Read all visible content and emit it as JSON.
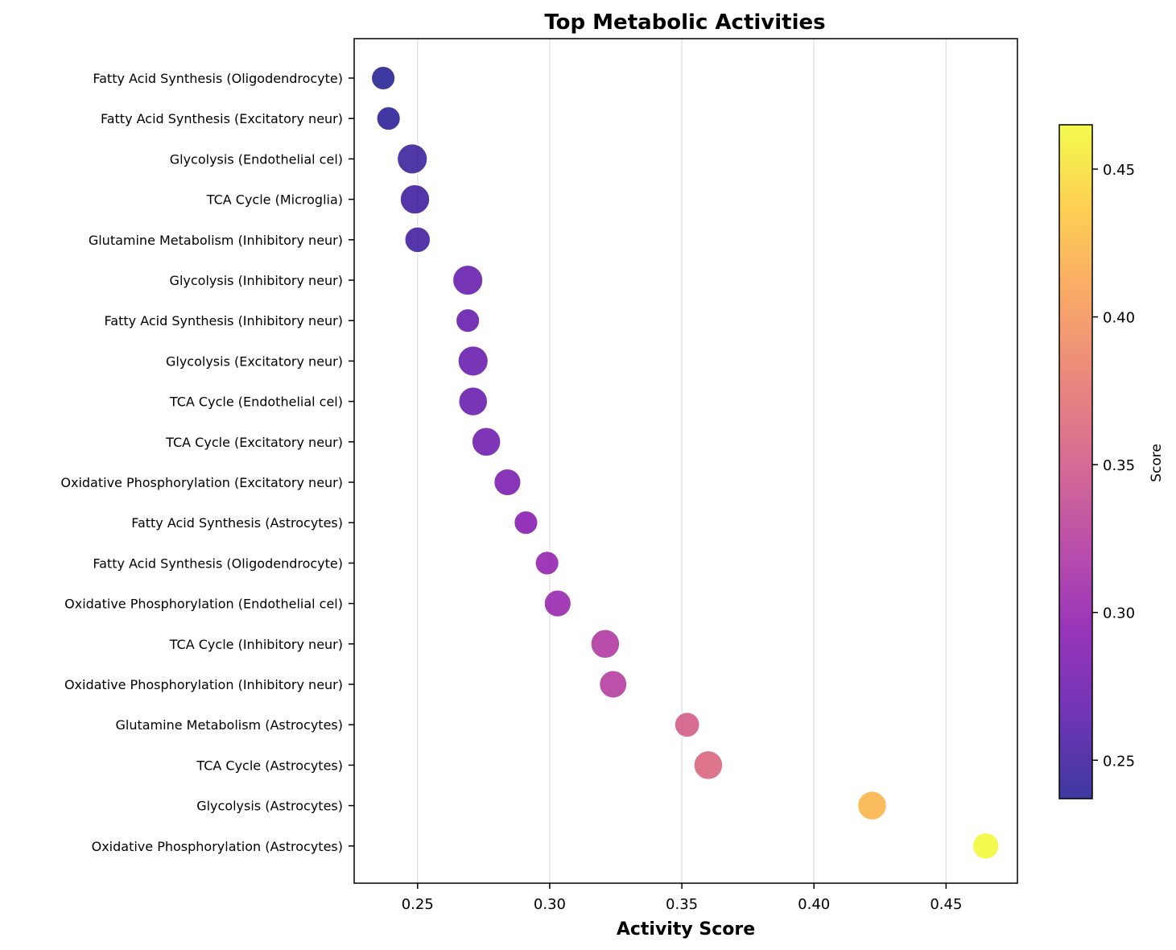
{
  "chart_data": {
    "type": "scatter",
    "title": "Top Metabolic Activities",
    "xlabel": "Activity Score",
    "ylabel": "",
    "xlim": [
      0.226,
      0.477
    ],
    "xticks": [
      0.25,
      0.3,
      0.35,
      0.4,
      0.45
    ],
    "xtick_labels": [
      "0.25",
      "0.30",
      "0.35",
      "0.40",
      "0.45"
    ],
    "grid": "vertical",
    "colormap": "plasma",
    "colorbar": {
      "label": "Score",
      "range": [
        0.237,
        0.465
      ],
      "ticks": [
        0.25,
        0.3,
        0.35,
        0.4,
        0.45
      ],
      "tick_labels": [
        "0.25",
        "0.30",
        "0.35",
        "0.40",
        "0.45"
      ]
    },
    "points": [
      {
        "label": "Fatty Acid Synthesis (Oligodendrocyte)",
        "x": 0.237,
        "size": 0.35
      },
      {
        "label": "Fatty Acid Synthesis (Excitatory neur)",
        "x": 0.239,
        "size": 0.35
      },
      {
        "label": "Glycolysis (Endothelial cel)",
        "x": 0.248,
        "size": 0.85
      },
      {
        "label": "TCA Cycle (Microglia)",
        "x": 0.249,
        "size": 0.8
      },
      {
        "label": "Glutamine Metabolism (Inhibitory neur)",
        "x": 0.25,
        "size": 0.5
      },
      {
        "label": "Glycolysis (Inhibitory neur)",
        "x": 0.269,
        "size": 0.85
      },
      {
        "label": "Fatty Acid Synthesis (Inhibitory neur)",
        "x": 0.269,
        "size": 0.35
      },
      {
        "label": "Glycolysis (Excitatory neur)",
        "x": 0.271,
        "size": 0.85
      },
      {
        "label": "TCA Cycle (Endothelial cel)",
        "x": 0.271,
        "size": 0.75
      },
      {
        "label": "TCA Cycle (Excitatory neur)",
        "x": 0.276,
        "size": 0.75
      },
      {
        "label": "Oxidative Phosphorylation (Excitatory neur)",
        "x": 0.284,
        "size": 0.6
      },
      {
        "label": "Fatty Acid Synthesis (Astrocytes)",
        "x": 0.291,
        "size": 0.35
      },
      {
        "label": "Fatty Acid Synthesis (Oligodendrocyte)",
        "x": 0.299,
        "size": 0.35
      },
      {
        "label": "Oxidative Phosphorylation (Endothelial cel)",
        "x": 0.303,
        "size": 0.6
      },
      {
        "label": "TCA Cycle (Inhibitory neur)",
        "x": 0.321,
        "size": 0.75
      },
      {
        "label": "Oxidative Phosphorylation (Inhibitory neur)",
        "x": 0.324,
        "size": 0.65
      },
      {
        "label": "Glutamine Metabolism (Astrocytes)",
        "x": 0.352,
        "size": 0.45
      },
      {
        "label": "TCA Cycle (Astrocytes)",
        "x": 0.36,
        "size": 0.75
      },
      {
        "label": "Glycolysis (Astrocytes)",
        "x": 0.422,
        "size": 0.75
      },
      {
        "label": "Oxidative Phosphorylation (Astrocytes)",
        "x": 0.465,
        "size": 0.55
      }
    ]
  }
}
